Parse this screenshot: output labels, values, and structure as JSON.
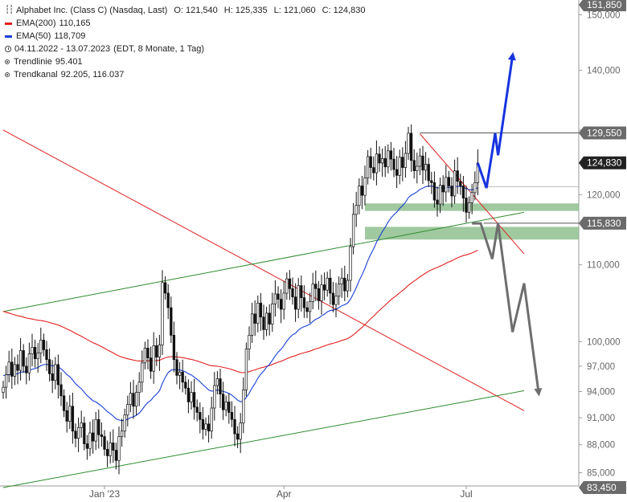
{
  "legend": {
    "title": "Alphabet Inc. (Class C) (Nasdaq, Last)",
    "ohlc": {
      "o": "O: 121,540",
      "h": "H: 125,335",
      "l": "L: 121,060",
      "c": "C: 124,830"
    },
    "ema200_label": "EMA(200)",
    "ema200_value": "110,165",
    "ema50_label": "EMA(50)",
    "ema50_value": "118,709",
    "range": "04.11.2022 - 13.07.2023",
    "range_info": "(EDT, 8 Monate, 1 Tag)",
    "trendline_label": "Trendlinie",
    "trendline_value": "95.401",
    "channel_label": "Trendkanal",
    "channel_value": "92.205, 116.037"
  },
  "colors": {
    "ema200": "#e02020",
    "ema50": "#1a3fd8",
    "trendline": "#e02020",
    "channel": "#2e8b2e",
    "zone": "#8fbf8f",
    "bull_arrow": "#1733e0",
    "bear_arrow": "#6e6e6e",
    "price_tag": "#222222",
    "level_tag": "#6b6b6b"
  },
  "chart_data": {
    "type": "candlestick",
    "title": "Alphabet Inc. (Class C) (Nasdaq, Last)",
    "x_labels": [
      {
        "label": "Jan '23",
        "index": 35
      },
      {
        "label": "Apr",
        "index": 97
      },
      {
        "label": "Jul",
        "index": 160
      }
    ],
    "y_ticks": [
      85,
      88,
      91,
      94,
      97,
      100,
      110,
      120,
      130,
      140,
      150
    ],
    "y_tick_labels": [
      "85,000",
      "88,000",
      "91,000",
      "94,000",
      "97,000",
      "100,000",
      "110,000",
      "120,000",
      "130,000",
      "140,000",
      "150,000"
    ],
    "ylim": [
      83.45,
      151.85
    ],
    "y_scale": "log",
    "price_labels": [
      {
        "label": "151,850",
        "value": 151.85,
        "style": "level"
      },
      {
        "label": "129,550",
        "value": 129.55,
        "style": "level"
      },
      {
        "label": "124,830",
        "value": 124.83,
        "style": "last"
      },
      {
        "label": "115,830",
        "value": 115.83,
        "style": "level"
      },
      {
        "label": "83,450",
        "value": 83.45,
        "style": "level"
      }
    ],
    "closes": [
      94.5,
      96.0,
      97.5,
      95.8,
      97.2,
      96.5,
      98.9,
      97.0,
      96.2,
      98.5,
      99.3,
      97.9,
      98.6,
      100.2,
      99.0,
      97.8,
      96.1,
      95.3,
      97.2,
      94.8,
      93.5,
      91.8,
      90.6,
      92.3,
      89.5,
      88.7,
      89.9,
      90.4,
      88.1,
      87.6,
      89.3,
      88.4,
      90.8,
      89.1,
      88.9,
      87.5,
      86.8,
      88.2,
      87.4,
      86.3,
      88.9,
      89.5,
      91.3,
      92.5,
      93.8,
      92.3,
      93.9,
      95.1,
      97.4,
      99.2,
      98.0,
      96.4,
      99.5,
      98.1,
      99.6,
      107.6,
      106.2,
      104.3,
      100.8,
      97.8,
      95.9,
      96.3,
      95.1,
      94.4,
      92.8,
      93.9,
      92.2,
      91.6,
      90.8,
      89.7,
      90.3,
      89.5,
      92.1,
      94.7,
      95.5,
      93.7,
      91.9,
      92.8,
      91.6,
      90.8,
      89.2,
      88.6,
      90.4,
      94.2,
      99.1,
      100.8,
      103.5,
      102.3,
      104.9,
      103.1,
      101.5,
      103.6,
      102.2,
      104.8,
      106.1,
      105.4,
      104.1,
      106.2,
      108.1,
      106.8,
      105.7,
      104.1,
      107.2,
      105.6,
      104.3,
      103.8,
      105.1,
      107.4,
      106.8,
      105.2,
      107.3,
      106.6,
      108.2,
      106.2,
      104.7,
      105.8,
      107.4,
      108.2,
      106.5,
      107.9,
      112.5,
      117.1,
      118.4,
      121.3,
      119.9,
      122.5,
      125.8,
      124.1,
      123.3,
      126.2,
      124.8,
      125.5,
      124.2,
      126.7,
      125.4,
      123.8,
      122.9,
      125.7,
      124.1,
      126.3,
      129.5,
      125.2,
      123.6,
      124.3,
      125.9,
      123.7,
      124.6,
      122.1,
      121.8,
      119.2,
      118.6,
      121.4,
      120.4,
      122.6,
      121.3,
      119.8,
      123.6,
      122.0,
      121.3,
      119.5,
      117.4,
      118.8,
      120.3,
      121.8,
      124.8
    ],
    "series": [
      {
        "name": "EMA(200)",
        "last": 110.165
      },
      {
        "name": "EMA(50)",
        "last": 118.709
      },
      {
        "name": "Trendlinie",
        "last": 95.401
      },
      {
        "name": "Trendkanal",
        "last": [
          92.205,
          116.037
        ]
      }
    ],
    "zones": [
      [
        117.6,
        118.7
      ],
      [
        113.5,
        115.3
      ]
    ],
    "scenario_arrows": [
      {
        "direction": "up",
        "target": 142.5
      },
      {
        "direction": "down",
        "target": 93.9
      }
    ]
  }
}
